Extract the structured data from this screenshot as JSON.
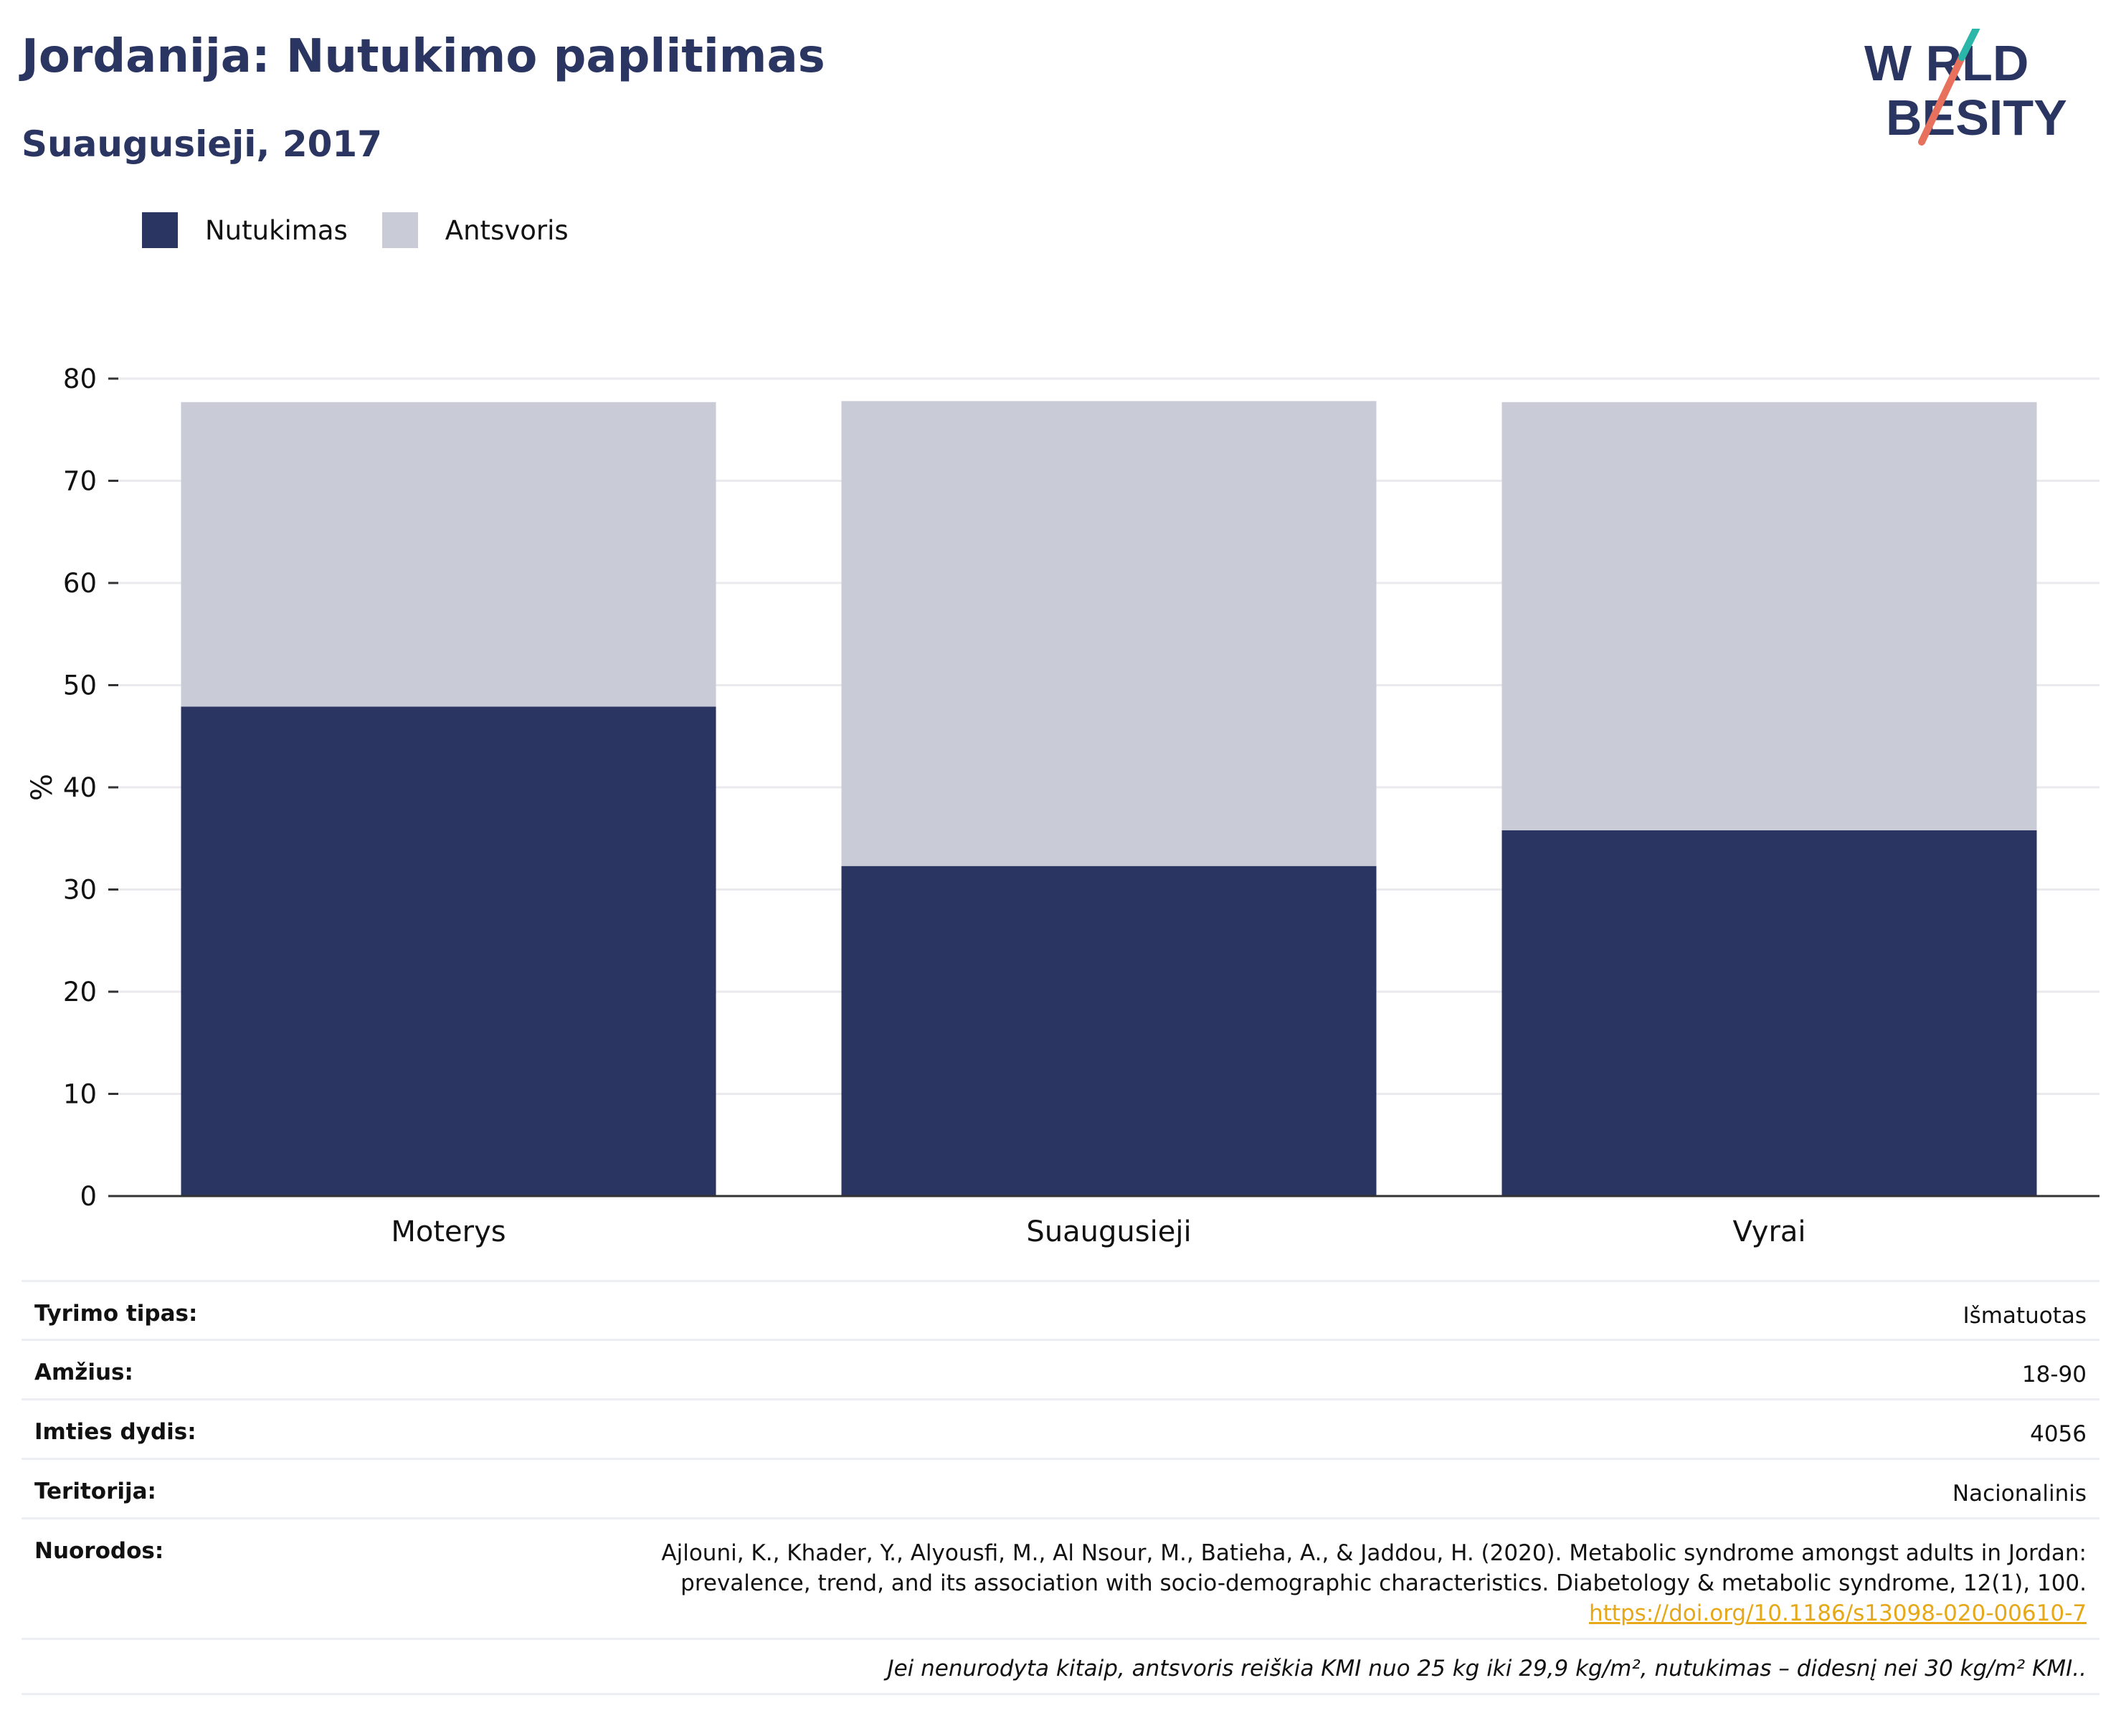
{
  "header": {
    "title": "Jordanija: Nutukimo paplitimas",
    "subtitle": "Suaugusieji, 2017"
  },
  "logo": {
    "line1": "W RLD",
    "line2": "BESITY",
    "text": "WORLD OBESITY"
  },
  "legend": {
    "items": [
      {
        "label": "Nutukimas",
        "color": "#2a3661"
      },
      {
        "label": "Antsvoris",
        "color": "#c9cbd6"
      }
    ]
  },
  "chart_data": {
    "type": "bar",
    "stacked": true,
    "categories": [
      "Moterys",
      "Suaugusieji",
      "Vyrai"
    ],
    "series": [
      {
        "name": "Nutukimas",
        "color": "#2a3661",
        "values": [
          47.9,
          32.3,
          35.8
        ]
      },
      {
        "name": "Antsvoris",
        "color": "#c9cbd6",
        "values": [
          29.8,
          45.5,
          41.9
        ]
      }
    ],
    "ylabel": "%",
    "ylim": [
      0,
      80
    ],
    "yticks": [
      "0",
      "10",
      "20",
      "30",
      "40",
      "50",
      "60",
      "70",
      "80"
    ],
    "grid": true,
    "legend_position": "top-left"
  },
  "info": {
    "rows": [
      {
        "key": "Tyrimo tipas:",
        "value": "Išmatuotas"
      },
      {
        "key": "Amžius:",
        "value": "18-90"
      },
      {
        "key": "Imties dydis:",
        "value": "4056"
      },
      {
        "key": "Teritorija:",
        "value": "Nacionalinis"
      }
    ],
    "references": {
      "key": "Nuorodos:",
      "line1": "Ajlouni, K., Khader, Y., Alyousfi, M., Al Nsour, M., Batieha, A., & Jaddou, H. (2020). Metabolic syndrome amongst adults in Jordan:",
      "line2": "prevalence, trend, and its association with socio-demographic characteristics. Diabetology & metabolic syndrome, 12(1), 100.",
      "link": "https://doi.org/10.1186/s13098-020-00610-7"
    },
    "footnote": "Jei nenurodyta kitaip, antsvoris reiškia KMI nuo 25 kg iki 29,9 kg/m², nutukimas – didesnį nei 30 kg/m² KMI.."
  }
}
